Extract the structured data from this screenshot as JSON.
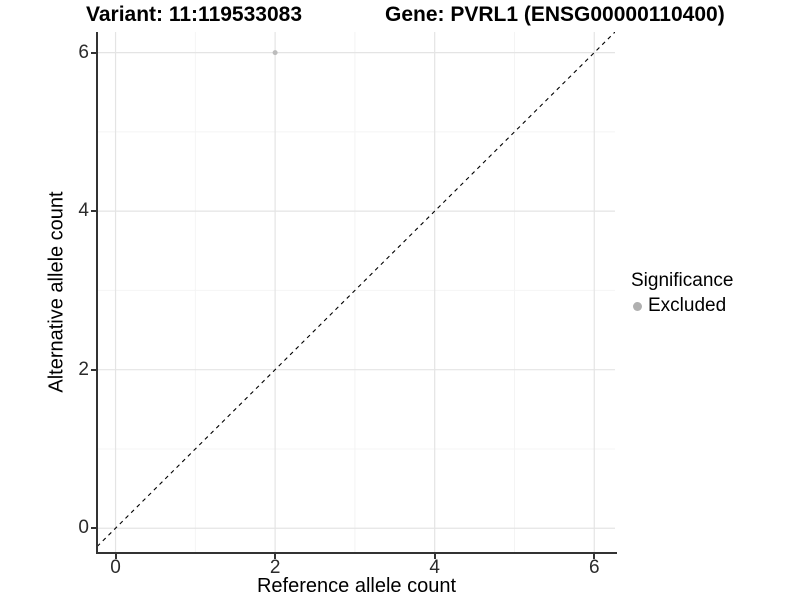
{
  "titles": {
    "variant": "Variant: 11:119533083",
    "gene": "Gene: PVRL1 (ENSG00000110400)"
  },
  "x_axis": {
    "label": "Reference allele count",
    "tick_labels": [
      "0",
      "2",
      "4",
      "6"
    ]
  },
  "y_axis": {
    "label": "Alternative allele count",
    "tick_labels": [
      "0",
      "2",
      "4",
      "6"
    ]
  },
  "legend": {
    "title": "Significance",
    "items": [
      {
        "label": "Excluded",
        "marker": "circle-icon",
        "color": "#b0b0b0"
      }
    ]
  },
  "colors": {
    "background": "#ffffff",
    "grid_major": "#e4e4e4",
    "grid_minor": "#f4f4f4",
    "axis_line": "#333333",
    "tick_text": "#2b2b2b",
    "title_text": "#000000",
    "point": "#bcbcbc",
    "identity_line": "#000000"
  },
  "chart_data": {
    "type": "scatter",
    "title": "Variant: 11:119533083   Gene: PVRL1 (ENSG00000110400)",
    "xlabel": "Reference allele count",
    "ylabel": "Alternative allele count",
    "xlim": [
      -0.22,
      6.26
    ],
    "ylim": [
      -0.3,
      6.26
    ],
    "x_ticks": [
      0,
      2,
      4,
      6
    ],
    "y_ticks": [
      0,
      2,
      4,
      6
    ],
    "x_minor_ticks": [
      1,
      3,
      5
    ],
    "y_minor_ticks": [
      1,
      3,
      5
    ],
    "grid": "on",
    "legend_position": "right",
    "series": [
      {
        "name": "Excluded",
        "color": "#bcbcbc",
        "point_radius": 2.5,
        "points": [
          {
            "x": 2,
            "y": 6
          }
        ]
      }
    ],
    "reference_line": {
      "kind": "identity",
      "slope": 1,
      "intercept": 0,
      "style": "dashed",
      "color": "#000000"
    }
  }
}
